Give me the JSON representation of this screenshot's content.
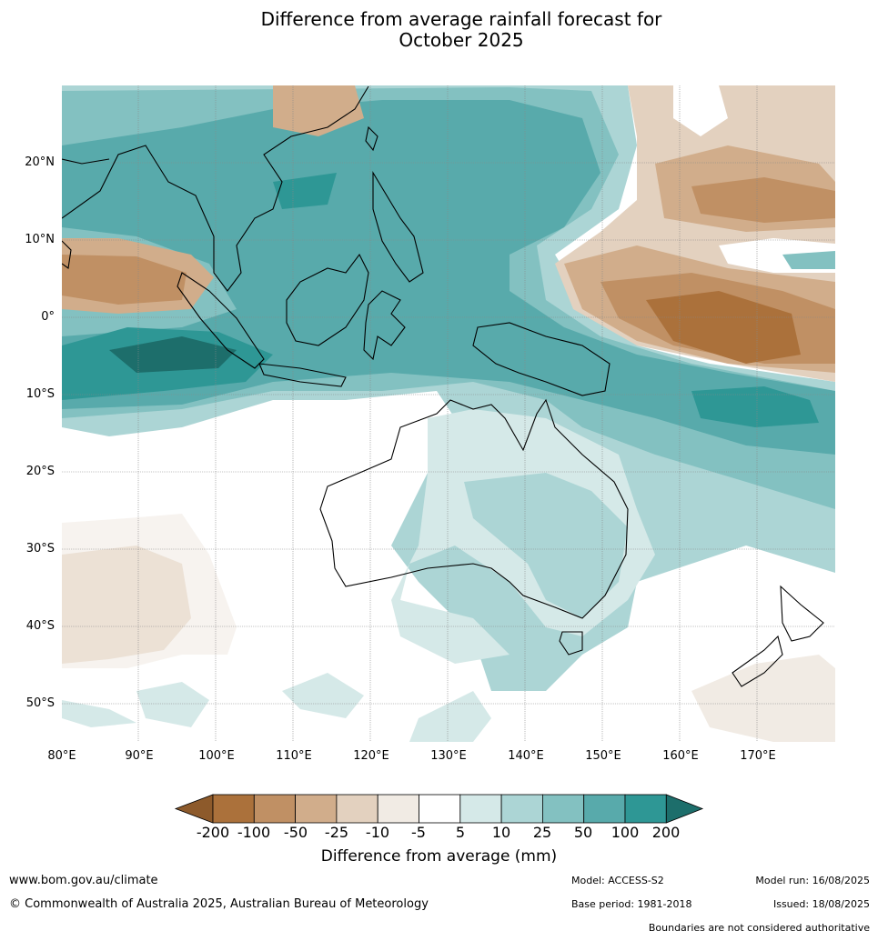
{
  "title": {
    "line1": "Difference from average rainfall forecast for",
    "line2": "October 2025"
  },
  "map": {
    "region": "Australia, Maritime Continent and Western Pacific",
    "extent": {
      "lon": [
        80,
        179
      ],
      "lat": [
        -55,
        30
      ]
    },
    "latitude_labels": [
      "20°N",
      "10°N",
      "0°",
      "10°S",
      "20°S",
      "30°S",
      "40°S",
      "50°S"
    ],
    "longitude_labels": [
      "80°E",
      "90°E",
      "100°E",
      "110°E",
      "120°E",
      "130°E",
      "140°E",
      "150°E",
      "160°E",
      "170°E"
    ]
  },
  "legend": {
    "title": "Difference from average (mm)",
    "ticks": [
      "-200",
      "-100",
      "-50",
      "-25",
      "-10",
      "-5",
      "5",
      "10",
      "25",
      "50",
      "100",
      "200"
    ],
    "colors": {
      "below_min": "#8d5a2b",
      "bins": [
        "#ab713b",
        "#c09064",
        "#d1ad8b",
        "#e3d1bf",
        "#f1ebe4",
        "#ffffff",
        "#d5e9e8",
        "#acd5d5",
        "#83c1c1",
        "#58aaab",
        "#2e9795"
      ],
      "above_max": "#1d6e6b"
    }
  },
  "footer": {
    "website": "www.bom.gov.au/climate",
    "copyright": "© Commonwealth of Australia 2025, Australian Bureau of Meteorology",
    "model": "Model: ACCESS-S2",
    "base_period": "Base period: 1981-2018",
    "model_run": "Model run: 16/08/2025",
    "issued": "Issued: 18/08/2025",
    "disclaimer": "Boundaries are not considered authoritative"
  }
}
